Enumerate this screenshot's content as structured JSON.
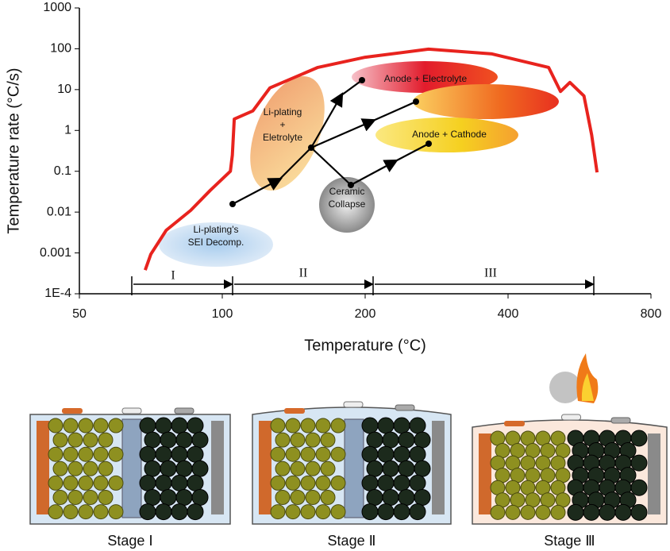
{
  "chart_data": {
    "type": "line",
    "xlabel": "Temperature (°C)",
    "ylabel": "Temperature rate (°C/s)",
    "xscale": "log",
    "yscale": "log",
    "color": "#e8231e",
    "x": [
      68.8,
      70.7,
      76.2,
      85.8,
      94.3,
      104,
      105,
      106,
      116,
      126,
      159,
      200,
      272,
      370,
      487,
      516,
      540,
      578,
      600,
      616
    ],
    "values": [
      0.00038,
      0.00093,
      0.0036,
      0.011,
      0.034,
      0.1,
      0.25,
      1.9,
      3,
      11,
      35,
      62,
      98,
      75,
      35,
      9,
      15,
      7,
      0.78,
      0.094
    ],
    "xlim": [
      50,
      800
    ],
    "xticks": [
      50,
      100,
      200,
      400,
      800
    ],
    "ylim": [
      0.0001,
      1000
    ],
    "yticks": [
      {
        "value": 0.0001,
        "label": "1E-4"
      },
      0.001,
      0.01,
      0.1,
      1,
      10,
      100,
      1000
    ],
    "annotations": [
      {
        "lines": [
          "Li-plating's",
          "SEI Decomp."
        ]
      },
      {
        "lines": [
          "Li-plating",
          "+",
          "Eletrolyte"
        ]
      },
      {
        "lines": [
          "Ceramic",
          "Collapse"
        ]
      },
      {
        "lines": [
          "Anode + Electrolyte"
        ]
      },
      {
        "lines": [
          "Anode + Cathode"
        ]
      }
    ],
    "stages": [
      "I",
      "II",
      "III"
    ],
    "stage_panels": [
      "Stage Ⅰ",
      "Stage Ⅱ",
      "Stage Ⅲ"
    ]
  }
}
